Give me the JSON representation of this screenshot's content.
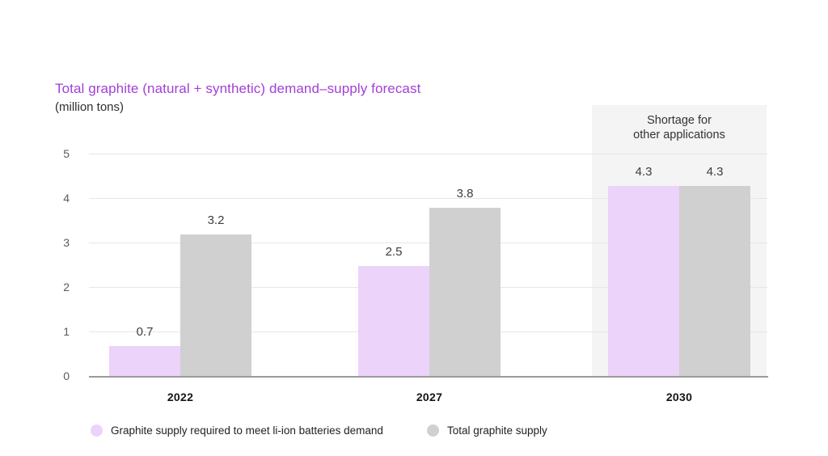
{
  "colors": {
    "title": "#a240d6",
    "bar_demand": "#ecd3fa",
    "bar_supply": "#d0d0d0",
    "annotation_bg": "#f4f4f4",
    "gridline": "#e6e6e6",
    "axis": "#9b9b9b",
    "text_dark": "#2e2e2e"
  },
  "chart_data": {
    "type": "bar",
    "title": "Total graphite (natural + synthetic) demand–supply forecast",
    "subtitle": "(million tons)",
    "categories": [
      "2022",
      "2027",
      "2030"
    ],
    "series": [
      {
        "key": "demand",
        "name": "Graphite supply required to meet li-ion batteries demand",
        "values": [
          0.7,
          2.5,
          4.3
        ]
      },
      {
        "key": "supply",
        "name": "Total graphite supply",
        "values": [
          3.2,
          3.8,
          4.3
        ]
      }
    ],
    "yticks": [
      0,
      1,
      2,
      3,
      4,
      5
    ],
    "ylim": [
      0,
      5
    ],
    "grid": "horizontal",
    "legend_position": "bottom",
    "annotation": {
      "lines": [
        "Shortage for",
        "other applications"
      ],
      "target_category": "2030"
    }
  }
}
